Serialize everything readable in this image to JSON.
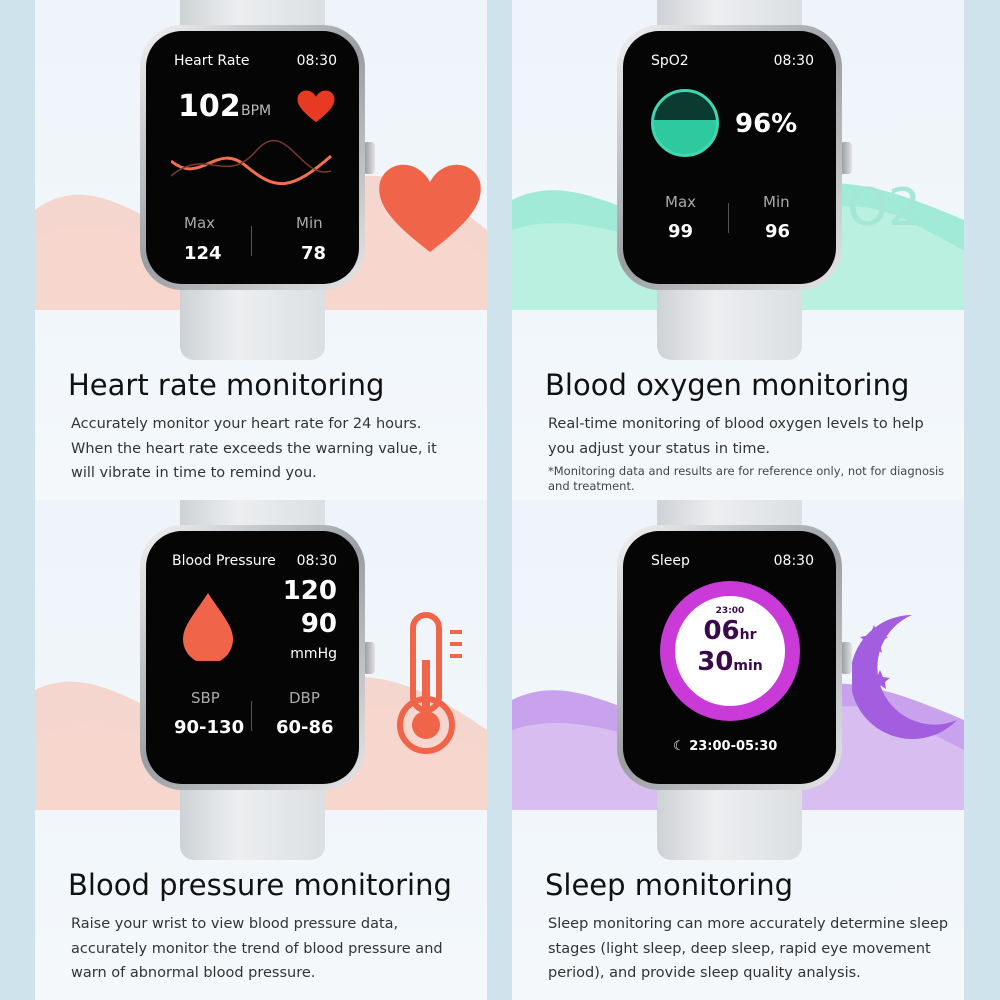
{
  "panels": [
    {
      "screen_title": "Heart Rate",
      "time": "08:30",
      "value": "102",
      "unit": "BPM",
      "max_label": "Max",
      "max": "124",
      "min_label": "Min",
      "min": "78",
      "title": "Heart rate monitoring",
      "desc": [
        "Accurately monitor your heart rate for 24 hours.",
        "When the heart rate exceeds the warning value, it",
        "will vibrate in time to remind you."
      ],
      "accent": "#f26b4f"
    },
    {
      "screen_title": "SpO2",
      "time": "08:30",
      "value": "96%",
      "max_label": "Max",
      "max": "99",
      "min_label": "Min",
      "min": "96",
      "deco_text": "O2",
      "title": "Blood oxygen monitoring",
      "desc": [
        "Real-time monitoring of blood oxygen levels to help",
        "you adjust your status in time."
      ],
      "note": "*Monitoring data and results are for reference only, not for diagnosis and treatment.",
      "accent": "#3fd6b0"
    },
    {
      "screen_title": "Blood Pressure",
      "time": "08:30",
      "sys": "120",
      "dia": "90",
      "unit": "mmHg",
      "sbp_label": "SBP",
      "sbp": "90-130",
      "dbp_label": "DBP",
      "dbp": "60-86",
      "title": "Blood pressure monitoring",
      "desc": [
        "Raise your wrist to view blood pressure data,",
        "accurately monitor the trend of blood pressure and",
        "warn of abnormal blood pressure."
      ],
      "accent": "#f26b4f"
    },
    {
      "screen_title": "Sleep",
      "time": "08:30",
      "start": "23:00",
      "hours": "06",
      "hr_unit": "hr",
      "minutes": "30",
      "min_unit": "min",
      "range": "23:00-05:30",
      "title": "Sleep monitoring",
      "desc": [
        "Sleep monitoring can more accurately determine sleep",
        "stages (light sleep, deep sleep, rapid eye movement",
        "period), and provide sleep quality analysis."
      ],
      "accent": "#b04de0"
    }
  ]
}
